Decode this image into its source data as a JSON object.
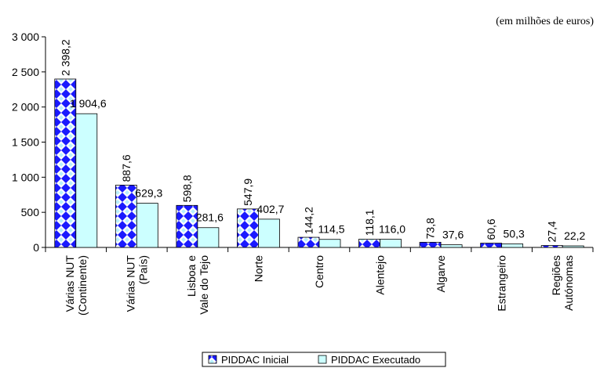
{
  "note": "(em milhões de euros)",
  "chart_data": {
    "type": "bar",
    "categories": [
      [
        "Várias NUT",
        "(Continente)"
      ],
      [
        "Várias NUT",
        "(País)"
      ],
      [
        "Lisboa e",
        "Vale do Tejo"
      ],
      [
        "Norte"
      ],
      [
        "Centro"
      ],
      [
        "Alentejo"
      ],
      [
        "Algarve"
      ],
      [
        "Estrangeiro"
      ],
      [
        "Regiões",
        "Autónomas"
      ]
    ],
    "series": [
      {
        "name": "PIDDAC Inicial",
        "values": [
          2398.2,
          887.6,
          598.8,
          547.9,
          144.2,
          118.1,
          73.8,
          60.6,
          27.4
        ],
        "labels": [
          "2 398,2",
          "887,6",
          "598,8",
          "547,9",
          "144,2",
          "118,1",
          "73,8",
          "60,6",
          "27,4"
        ],
        "fill": "pattern-diamond-blue",
        "color": "#1a1aff"
      },
      {
        "name": "PIDDAC Executado",
        "values": [
          1904.6,
          629.3,
          281.6,
          402.7,
          114.5,
          116.0,
          37.6,
          50.3,
          22.2
        ],
        "labels": [
          "1 904,6",
          "629,3",
          "281,6",
          "402,7",
          "114,5",
          "116,0",
          "37,6",
          "50,3",
          "22,2"
        ],
        "color": "#ccffff"
      }
    ],
    "ylim": [
      0,
      3000
    ],
    "yticks": [
      0,
      500,
      1000,
      1500,
      2000,
      2500,
      3000
    ],
    "ytick_labels": [
      "0",
      "500",
      "1 000",
      "1 500",
      "2 000",
      "2 500",
      "3 000"
    ],
    "legend_position": "bottom-center",
    "grid": false
  }
}
